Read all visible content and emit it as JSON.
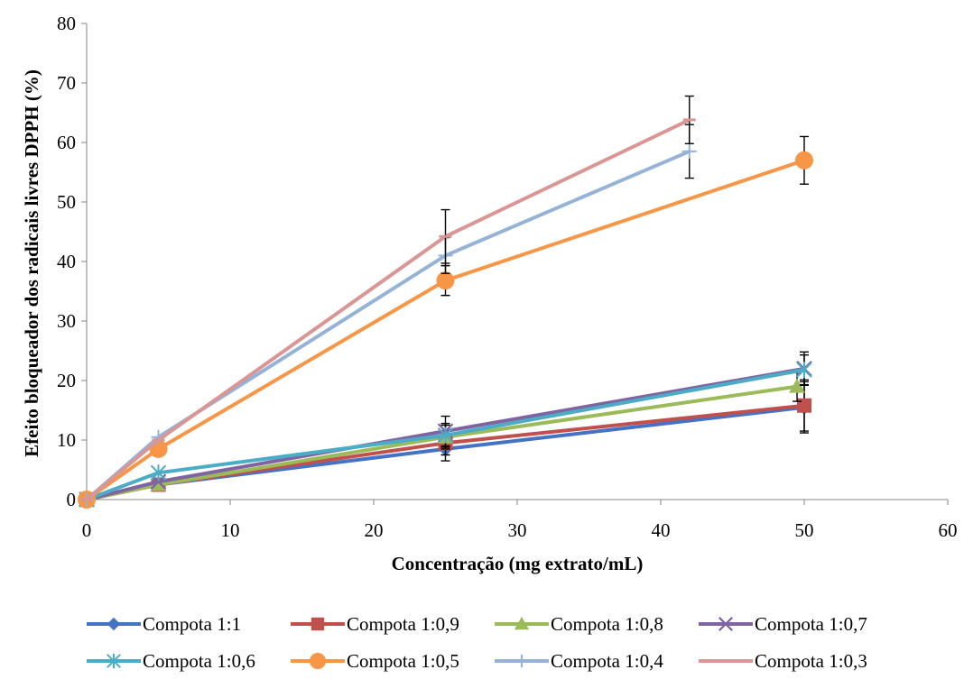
{
  "chart_data": {
    "type": "line",
    "title": "",
    "xlabel": "Concentração (mg extrato/mL)",
    "ylabel": "Efeito bloqueador dos radicais livres DPPH (%)",
    "xlim": [
      0,
      60
    ],
    "ylim": [
      0,
      80
    ],
    "xticks": [
      0,
      10,
      20,
      30,
      40,
      50,
      60
    ],
    "yticks": [
      0,
      10,
      20,
      30,
      40,
      50,
      60,
      70,
      80
    ],
    "grid": false,
    "legend_position": "bottom",
    "series": [
      {
        "name": "Compota 1:1",
        "color": "#4472C4",
        "marker": "diamond",
        "x": [
          0,
          5,
          25,
          50
        ],
        "y": [
          0,
          2.5,
          8.5,
          15.5
        ],
        "err": [
          0,
          0,
          2.0,
          4.3
        ]
      },
      {
        "name": "Compota 1:0,9",
        "color": "#C0504D",
        "marker": "square",
        "x": [
          0,
          5,
          25,
          50
        ],
        "y": [
          0,
          2.5,
          9.5,
          15.8
        ],
        "err": [
          0,
          0,
          2.0,
          4.3
        ]
      },
      {
        "name": "Compota 1:0,8",
        "color": "#9BBB59",
        "marker": "triangle",
        "x": [
          0,
          5,
          25,
          49.5
        ],
        "y": [
          0,
          2.5,
          10.5,
          19.0
        ],
        "err": [
          0,
          0,
          2.0,
          2.5
        ]
      },
      {
        "name": "Compota 1:0,7",
        "color": "#8064A2",
        "marker": "x",
        "x": [
          0,
          5,
          25,
          50
        ],
        "y": [
          0,
          3.0,
          11.5,
          22.0
        ],
        "err": [
          0,
          0,
          2.5,
          2.8
        ]
      },
      {
        "name": "Compota 1:0,6",
        "color": "#4BACC6",
        "marker": "star",
        "x": [
          0,
          5,
          25,
          50
        ],
        "y": [
          0,
          4.5,
          10.8,
          21.8
        ],
        "err": [
          0,
          0,
          2.0,
          2.5
        ]
      },
      {
        "name": "Compota 1:0,5",
        "color": "#F79646",
        "marker": "circle",
        "x": [
          0,
          5,
          25,
          50
        ],
        "y": [
          0,
          8.5,
          36.8,
          57.0
        ],
        "err": [
          0,
          0,
          2.5,
          4.0
        ]
      },
      {
        "name": "Compota 1:0,4",
        "color": "#95B3D7",
        "marker": "plus",
        "x": [
          0,
          5,
          25,
          42
        ],
        "y": [
          0,
          10.5,
          41.0,
          58.5
        ],
        "err": [
          0,
          0,
          3.0,
          4.5
        ]
      },
      {
        "name": "Compota 1:0,3",
        "color": "#D99694",
        "marker": "dash",
        "x": [
          0,
          5,
          25,
          42
        ],
        "y": [
          0,
          10.0,
          44.2,
          63.8
        ],
        "err": [
          0,
          0,
          4.5,
          4.0
        ]
      }
    ]
  }
}
